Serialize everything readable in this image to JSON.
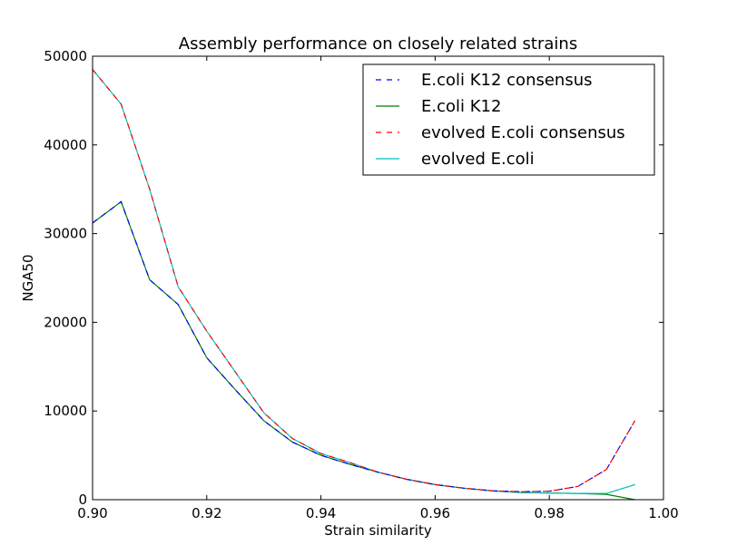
{
  "chart_data": {
    "type": "line",
    "title": "Assembly performance on closely related strains",
    "xlabel": "Strain similarity",
    "ylabel": "NGA50",
    "xlim": [
      0.9,
      1.0
    ],
    "ylim": [
      0,
      50000
    ],
    "xticks": [
      0.9,
      0.92,
      0.94,
      0.96,
      0.98,
      1.0
    ],
    "xtick_labels": [
      "0.90",
      "0.92",
      "0.94",
      "0.96",
      "0.98",
      "1.00"
    ],
    "yticks": [
      0,
      10000,
      20000,
      30000,
      40000,
      50000
    ],
    "ytick_labels": [
      "0",
      "10000",
      "20000",
      "30000",
      "40000",
      "50000"
    ],
    "grid": false,
    "legend_position": "top-right",
    "x": [
      0.9,
      0.905,
      0.91,
      0.915,
      0.92,
      0.925,
      0.93,
      0.935,
      0.94,
      0.945,
      0.95,
      0.955,
      0.96,
      0.965,
      0.97,
      0.975,
      0.98,
      0.985,
      0.99,
      0.995
    ],
    "series": [
      {
        "name": "E.coli K12 consensus",
        "color": "#0000ff",
        "dashed": true,
        "values": [
          31200,
          33600,
          24800,
          22000,
          16000,
          12400,
          8900,
          6500,
          5000,
          4000,
          3100,
          2300,
          1700,
          1300,
          1000,
          900,
          950,
          1500,
          3400,
          8900
        ]
      },
      {
        "name": "E.coli K12",
        "color": "#008000",
        "dashed": false,
        "values": [
          31200,
          33600,
          24800,
          22000,
          16000,
          12400,
          8900,
          6500,
          5000,
          4000,
          3100,
          2300,
          1700,
          1300,
          1000,
          800,
          750,
          700,
          600,
          0
        ]
      },
      {
        "name": "evolved E.coli consensus",
        "color": "#ff0000",
        "dashed": true,
        "values": [
          48500,
          44600,
          35000,
          24000,
          19000,
          14400,
          9800,
          6900,
          5200,
          4200,
          3100,
          2300,
          1700,
          1300,
          1000,
          900,
          950,
          1500,
          3400,
          8900
        ]
      },
      {
        "name": "evolved E.coli",
        "color": "#00bfbf",
        "dashed": false,
        "values": [
          48500,
          44600,
          35000,
          24000,
          19000,
          14400,
          9800,
          6900,
          5200,
          4200,
          3100,
          2300,
          1700,
          1300,
          1000,
          800,
          750,
          700,
          700,
          1700
        ]
      }
    ]
  }
}
